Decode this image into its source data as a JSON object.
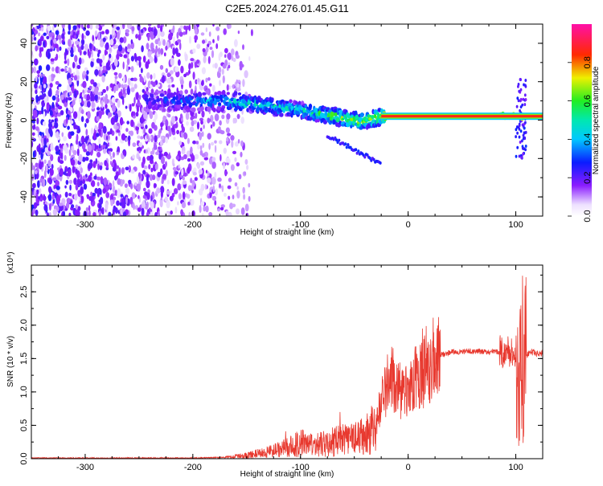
{
  "figure": {
    "title": "C2E5.2024.276.01.45.G11"
  },
  "colors": {
    "snr_line": "#e8392f",
    "axis": "#000000",
    "background": "#ffffff"
  },
  "chart_data": [
    {
      "type": "heatmap",
      "xlabel": "Height of straight line (km)",
      "ylabel": "Frequency (Hz)",
      "xlim": [
        -350,
        125
      ],
      "ylim": [
        -50,
        50
      ],
      "xticks": [
        -300,
        -200,
        -100,
        0,
        100
      ],
      "yticks": [
        -40,
        -20,
        0,
        20,
        40
      ],
      "colorbar": {
        "label": "Normalized spectral amplitude",
        "range": [
          0,
          1
        ],
        "ticks": [
          "0.0",
          "0.2",
          "0.4",
          "0.6",
          "0.8"
        ],
        "colormap": "rainbow (white, violet, blue, cyan, green, yellow, red, magenta)"
      },
      "ridge": [
        {
          "x": -240,
          "f": 10,
          "amp": 0.3
        },
        {
          "x": -175,
          "f": 10,
          "amp": 0.45
        },
        {
          "x": -140,
          "f": 8,
          "amp": 0.55
        },
        {
          "x": -110,
          "f": 6,
          "amp": 0.5
        },
        {
          "x": -80,
          "f": 3,
          "amp": 0.6
        },
        {
          "x": -60,
          "f": 1,
          "amp": 0.75
        },
        {
          "x": -45,
          "f": -1,
          "amp": 0.7
        },
        {
          "x": -30,
          "f": 1,
          "amp": 0.8
        },
        {
          "x": -20,
          "f": 2,
          "amp": 0.95
        },
        {
          "x": 0,
          "f": 2,
          "amp": 1
        },
        {
          "x": 80,
          "f": 2,
          "amp": 1
        },
        {
          "x": 100,
          "f": 2,
          "amp": 0.9
        },
        {
          "x": 125,
          "f": 2,
          "amp": 1
        }
      ],
      "noise_edge_x": -150
    },
    {
      "type": "line",
      "xlabel": "Height of straight line (km)",
      "ylabel": "SNR (10 * v/v)",
      "yscale_label": "(x10⁴)",
      "xlim": [
        -350,
        125
      ],
      "ylim": [
        0,
        2.9
      ],
      "xticks": [
        -300,
        -200,
        -100,
        0,
        100
      ],
      "yticks": [
        "0.0",
        "0.5",
        "1.0",
        "1.5",
        "2.0",
        "2.5"
      ],
      "series": [
        {
          "x": [
            -350,
            -300,
            -250,
            -200,
            -170,
            -150,
            -130,
            -110,
            -100,
            -90,
            -80,
            -70,
            -60,
            -50,
            -40,
            -30,
            -25,
            -20,
            -15,
            -10,
            -5,
            0,
            10,
            20,
            30,
            40,
            50,
            60,
            70,
            80,
            90,
            95,
            100,
            103,
            105,
            108,
            110,
            115,
            120,
            125
          ],
          "y": [
            0.01,
            0.01,
            0.01,
            0.01,
            0.02,
            0.05,
            0.1,
            0.18,
            0.25,
            0.2,
            0.22,
            0.25,
            0.28,
            0.3,
            0.35,
            0.5,
            0.85,
            1.1,
            1.2,
            1.05,
            0.95,
            1.0,
            1.3,
            1.45,
            1.55,
            1.6,
            1.6,
            1.61,
            1.6,
            1.6,
            1.6,
            1.6,
            1.5,
            1.2,
            1.4,
            1.5,
            1.55,
            1.6,
            1.57,
            1.58
          ]
        }
      ]
    }
  ]
}
